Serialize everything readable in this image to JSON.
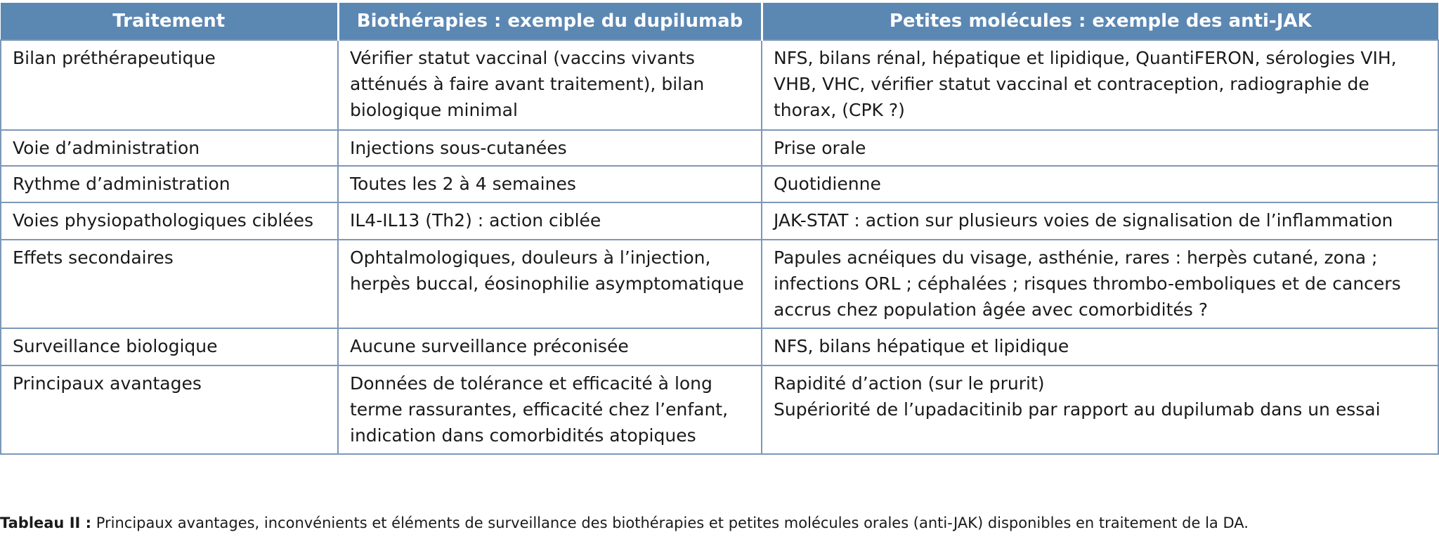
{
  "table": {
    "columns": [
      "Traitement",
      "Biothérapies : exemple du dupilumab",
      "Petites molécules : exemple des anti-JAK"
    ],
    "rows": [
      [
        "Bilan préthérapeutique",
        "Vérifier statut vaccinal (vaccins vivants atténués à faire avant traitement), bilan biologique minimal",
        "NFS, bilans rénal, hépatique et lipidique, QuantiFERON, sérologies VIH, VHB, VHC, vérifier statut vaccinal et contraception, radiographie de thorax, (CPK ?)"
      ],
      [
        "Voie d’administration",
        "Injections sous-cutanées",
        "Prise orale"
      ],
      [
        "Rythme d’administration",
        "Toutes les 2 à 4 semaines",
        "Quotidienne"
      ],
      [
        "Voies physiopathologiques ciblées",
        "IL4-IL13 (Th2) : action ciblée",
        "JAK-STAT : action sur plusieurs voies de signalisation de l’inflammation"
      ],
      [
        "Effets secondaires",
        "Ophtalmologiques, douleurs à l’injection, herpès buccal, éosinophilie asymptomatique",
        "Papules acnéiques du visage, asthénie, rares : herpès cutané, zona ; infections ORL ; céphalées ; risques thrombo-emboliques et de cancers accrus chez population âgée avec comorbidités ?"
      ],
      [
        "Surveillance biologique",
        "Aucune surveillance préconisée",
        "NFS, bilans hépatique et lipidique"
      ],
      [
        "Principaux avantages",
        "Données de tolérance et efficacité à long terme rassurantes, efficacité chez l’enfant, indication dans comorbidités atopiques",
        "Rapidité d’action (sur le prurit)\nSupériorité de l’upadacitinib par rapport au dupilumab dans un essai"
      ]
    ]
  },
  "caption": {
    "label": "Tableau II :",
    "text": "Principaux avantages, inconvénients et éléments de surveillance des biothérapies et petites molécules orales (anti-JAK) disponibles en traitement de la DA."
  }
}
